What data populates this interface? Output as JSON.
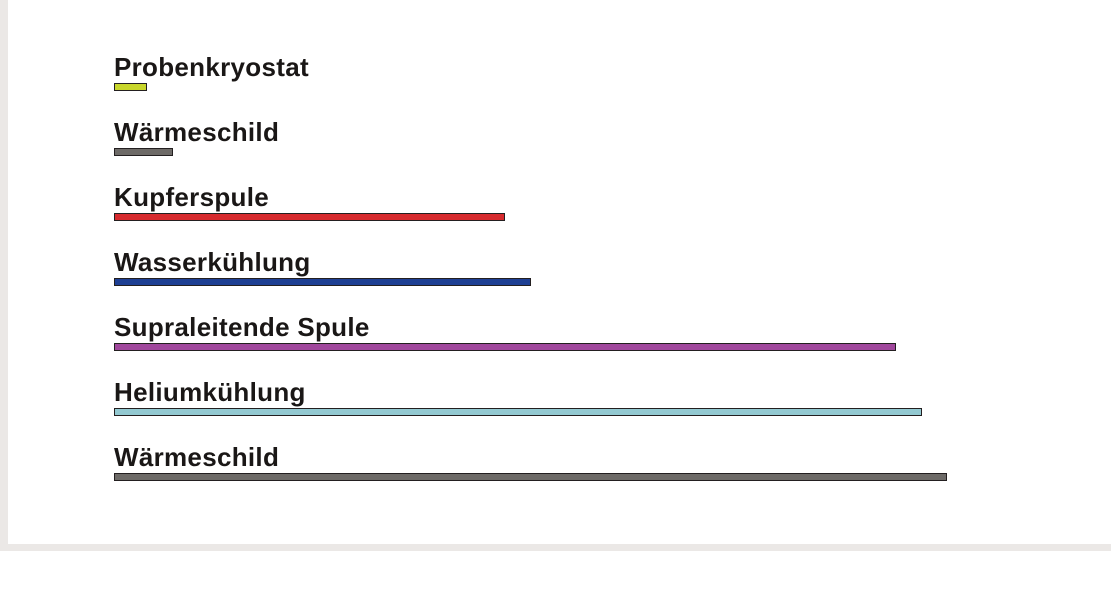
{
  "layers": [
    {
      "label": "Probenkryostat",
      "color": "#c8d62b",
      "extent": 0.04
    },
    {
      "label": "Wärmeschild",
      "color": "#6d6a67",
      "extent": 0.071
    },
    {
      "label": "Kupferspule",
      "color": "#d62a2e",
      "extent": 0.469
    },
    {
      "label": "Wasserkühlung",
      "color": "#1e3f93",
      "extent": 0.5
    },
    {
      "label": "Supraleitende Spule",
      "color": "#a0479c",
      "extent": 0.939
    },
    {
      "label": "Heliumkühlung",
      "color": "#93c9d1",
      "extent": 0.97
    },
    {
      "label": "Wärmeschild",
      "color": "#6d6a67",
      "extent": 1.0
    }
  ]
}
